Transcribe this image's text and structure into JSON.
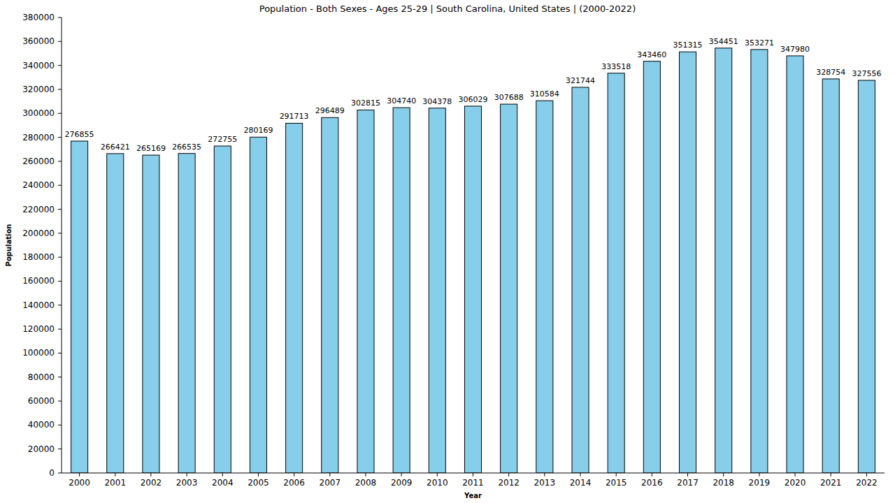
{
  "chart_data": {
    "type": "bar",
    "title": "Population - Both Sexes - Ages 25-29 | South Carolina, United States |  (2000-2022)",
    "x_label": "Year",
    "y_label": "Population",
    "categories": [
      "2000",
      "2001",
      "2002",
      "2003",
      "2004",
      "2005",
      "2006",
      "2007",
      "2008",
      "2009",
      "2010",
      "2011",
      "2012",
      "2013",
      "2014",
      "2015",
      "2016",
      "2017",
      "2018",
      "2019",
      "2020",
      "2021",
      "2022"
    ],
    "values": [
      276855,
      266421,
      265169,
      266535,
      272755,
      280169,
      291713,
      296489,
      302815,
      304740,
      304378,
      306029,
      307688,
      310584,
      321744,
      333518,
      343460,
      351315,
      354451,
      353271,
      347980,
      328754,
      327556
    ],
    "color": "#87ceeb",
    "ylim": [
      0,
      380000
    ],
    "yticks": [
      0,
      20000,
      40000,
      60000,
      80000,
      100000,
      120000,
      140000,
      160000,
      180000,
      200000,
      220000,
      240000,
      260000,
      280000,
      300000,
      320000,
      340000,
      360000,
      380000
    ],
    "grid": false,
    "data_labels": true
  }
}
